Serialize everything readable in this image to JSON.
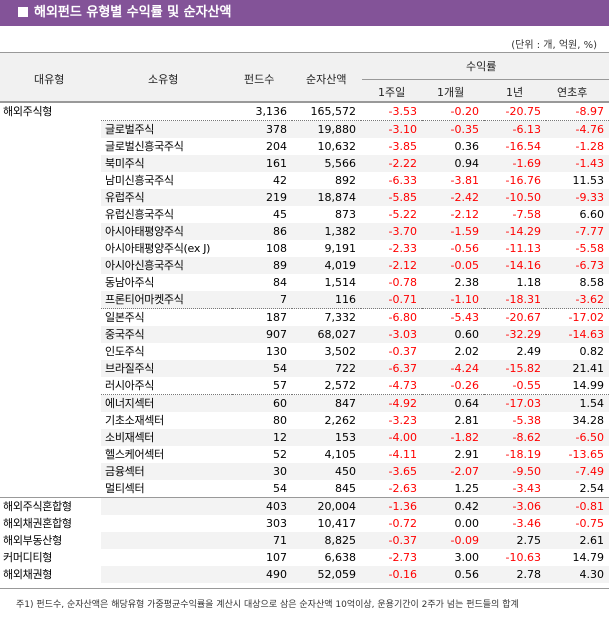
{
  "title": "해외펀드 유형별 수익률 및 순자산액",
  "unit": "(단위 : 개, 억원, %)",
  "headers": {
    "major": "대유형",
    "minor": "소유형",
    "count": "펀드수",
    "nav": "순자산액",
    "returns": "수익률",
    "w1": "1주일",
    "m1": "1개월",
    "y1": "1년",
    "ytd": "연초후"
  },
  "colors": {
    "title_bg": "#835398",
    "negative": "#ff0000"
  },
  "rows": [
    [
      "해외주식형",
      "",
      "3,136",
      "165,572",
      "-3.53",
      "-0.20",
      "-20.75",
      "-8.97"
    ],
    [
      "",
      "글로벌주식",
      "378",
      "19,880",
      "-3.10",
      "-0.35",
      "-6.13",
      "-4.76"
    ],
    [
      "",
      "글로벌신흥국주식",
      "204",
      "10,632",
      "-3.85",
      "0.36",
      "-16.54",
      "-1.28"
    ],
    [
      "",
      "북미주식",
      "161",
      "5,566",
      "-2.22",
      "0.94",
      "-1.69",
      "-1.43"
    ],
    [
      "",
      "남미신흥국주식",
      "42",
      "892",
      "-6.33",
      "-3.81",
      "-16.76",
      "11.53"
    ],
    [
      "",
      "유럽주식",
      "219",
      "18,874",
      "-5.85",
      "-2.42",
      "-10.50",
      "-9.33"
    ],
    [
      "",
      "유럽신흥국주식",
      "45",
      "873",
      "-5.22",
      "-2.12",
      "-7.58",
      "6.60"
    ],
    [
      "",
      "아시아태평양주식",
      "86",
      "1,382",
      "-3.70",
      "-1.59",
      "-14.29",
      "-7.77"
    ],
    [
      "",
      "아시아태평양주식(ex J)",
      "108",
      "9,191",
      "-2.33",
      "-0.56",
      "-11.13",
      "-5.58"
    ],
    [
      "",
      "아시아신흥국주식",
      "89",
      "4,019",
      "-2.12",
      "-0.05",
      "-14.16",
      "-6.73"
    ],
    [
      "",
      "동남아주식",
      "84",
      "1,514",
      "-0.78",
      "2.38",
      "1.18",
      "8.58"
    ],
    [
      "",
      "프론티어마켓주식",
      "7",
      "116",
      "-0.71",
      "-1.10",
      "-18.31",
      "-3.62"
    ],
    [
      "",
      "일본주식",
      "187",
      "7,332",
      "-6.80",
      "-5.43",
      "-20.67",
      "-17.02"
    ],
    [
      "",
      "중국주식",
      "907",
      "68,027",
      "-3.03",
      "0.60",
      "-32.29",
      "-14.63"
    ],
    [
      "",
      "인도주식",
      "130",
      "3,502",
      "-0.37",
      "2.02",
      "2.49",
      "0.82"
    ],
    [
      "",
      "브라질주식",
      "54",
      "722",
      "-6.37",
      "-4.24",
      "-15.82",
      "21.41"
    ],
    [
      "",
      "러시아주식",
      "57",
      "2,572",
      "-4.73",
      "-0.26",
      "-0.55",
      "14.99"
    ],
    [
      "",
      "에너지섹터",
      "60",
      "847",
      "-4.92",
      "0.64",
      "-17.03",
      "1.54"
    ],
    [
      "",
      "기초소재섹터",
      "80",
      "2,262",
      "-3.23",
      "2.81",
      "-5.38",
      "34.28"
    ],
    [
      "",
      "소비재섹터",
      "12",
      "153",
      "-4.00",
      "-1.82",
      "-8.62",
      "-6.50"
    ],
    [
      "",
      "헬스케어섹터",
      "52",
      "4,105",
      "-4.11",
      "2.91",
      "-18.19",
      "-13.65"
    ],
    [
      "",
      "금융섹터",
      "30",
      "450",
      "-3.65",
      "-2.07",
      "-9.50",
      "-7.49"
    ],
    [
      "",
      "멀티섹터",
      "54",
      "845",
      "-2.63",
      "1.25",
      "-3.43",
      "2.54"
    ],
    [
      "해외주식혼합형",
      "",
      "403",
      "20,004",
      "-1.36",
      "0.42",
      "-3.06",
      "-0.81"
    ],
    [
      "해외채권혼합형",
      "",
      "303",
      "10,417",
      "-0.72",
      "0.00",
      "-3.46",
      "-0.75"
    ],
    [
      "해외부동산형",
      "",
      "71",
      "8,825",
      "-0.37",
      "-0.09",
      "2.75",
      "2.61"
    ],
    [
      "커머디티형",
      "",
      "107",
      "6,638",
      "-2.73",
      "3.00",
      "-10.63",
      "14.79"
    ],
    [
      "해외채권형",
      "",
      "490",
      "52,059",
      "-0.16",
      "0.56",
      "2.78",
      "4.30"
    ]
  ],
  "footnote": "주1) 펀드수, 순자산액은 해당유형 가중평균수익률을 계산시 대상으로 삼은 순자산액 10억이상, 운용기간이 2주가 넘는 펀드들의 합계"
}
